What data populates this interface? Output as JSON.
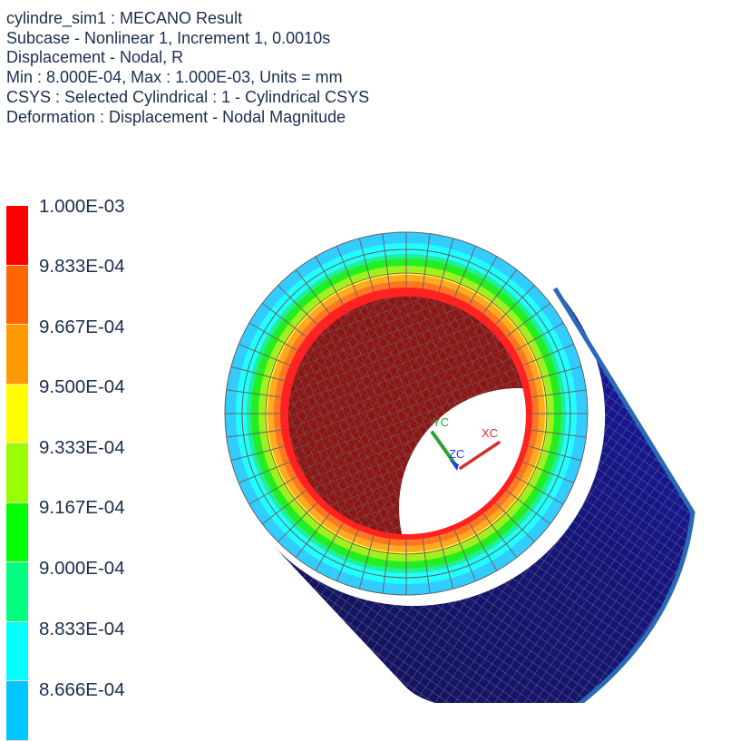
{
  "header": {
    "lines": [
      "cylindre_sim1 : MECANO Result",
      "Subcase - Nonlinear 1, Increment 1, 0.0010s",
      "Displacement - Nodal, R",
      "Min : 8.000E-04, Max : 1.000E-03, Units = mm",
      "CSYS : Selected Cylindrical : 1 - Cylindrical CSYS",
      "Deformation : Displacement - Nodal Magnitude"
    ]
  },
  "legend": {
    "labels": [
      "1.000E-03",
      "9.833E-04",
      "9.667E-04",
      "9.500E-04",
      "9.333E-04",
      "9.167E-04",
      "9.000E-04",
      "8.833E-04",
      "8.666E-04"
    ],
    "colors": [
      "#ff0000",
      "#ff6600",
      "#ff9900",
      "#ffff00",
      "#99ff00",
      "#00ff00",
      "#00ff80",
      "#00ffff",
      "#00c8ff"
    ]
  },
  "triad": {
    "x_label": "XC",
    "y_label": "YC",
    "z_label": "ZC",
    "x_color": "#d03030",
    "y_color": "#30a030",
    "z_color": "#2040e0"
  },
  "model": {
    "ring_colors": [
      "#33ccff",
      "#22ffff",
      "#22ee99",
      "#22ee22",
      "#a0f020",
      "#ffff22",
      "#ffaa22",
      "#ff7722",
      "#ff2222"
    ],
    "inner_wall_color": "#8e1414",
    "body_color": "#15158a",
    "mesh_color": "#707070"
  }
}
